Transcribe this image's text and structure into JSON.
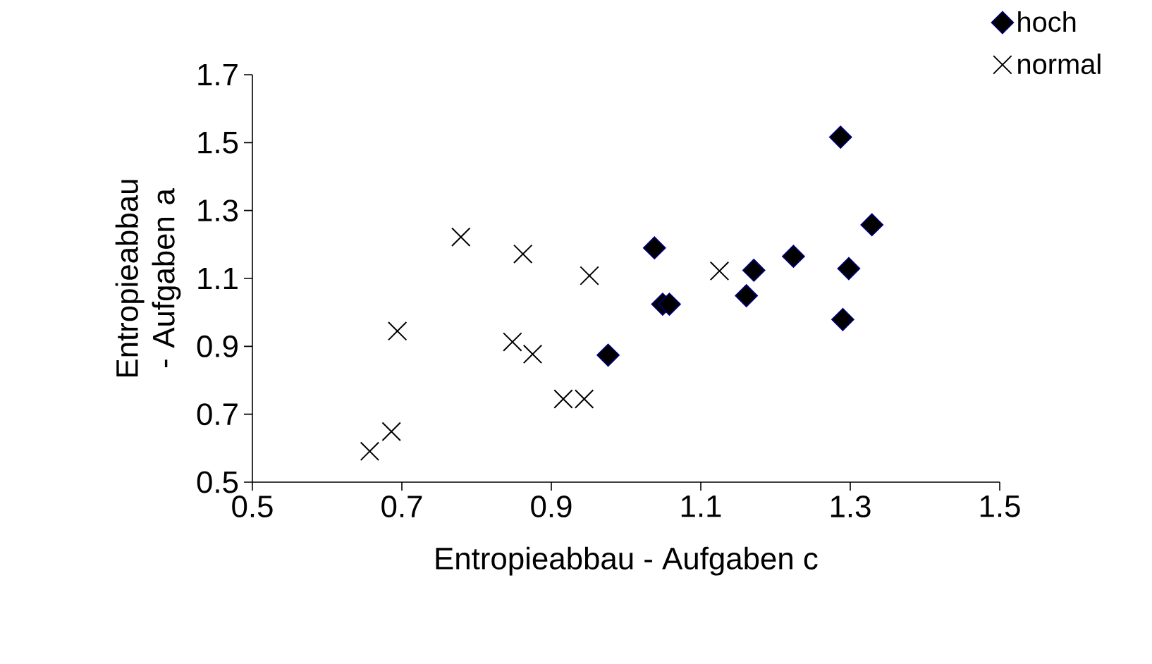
{
  "chart_data": {
    "type": "scatter",
    "xlabel": "Entropieabbau - Aufgaben c",
    "ylabel": "Entropieabbau - Aufgaben a",
    "xlim": [
      0.5,
      1.5
    ],
    "ylim": [
      0.5,
      1.7
    ],
    "xticks": [
      0.5,
      0.7,
      0.9,
      1.1,
      1.3,
      1.5
    ],
    "yticks": [
      0.5,
      0.7,
      0.9,
      1.1,
      1.3,
      1.5,
      1.7
    ],
    "grid": false,
    "legend": "top right",
    "series": [
      {
        "name": "hoch",
        "color": "#000000",
        "marker": "diamond",
        "x": [
          0.976,
          1.038,
          1.049,
          1.058,
          1.171,
          1.161,
          1.224,
          1.287,
          1.329,
          1.298,
          1.29
        ],
        "values": [
          0.874,
          1.19,
          1.024,
          1.024,
          1.124,
          1.049,
          1.165,
          1.516,
          1.258,
          1.129,
          0.979
        ]
      },
      {
        "name": "normal",
        "color": "#000000",
        "marker": "cross",
        "x": [
          0.657,
          0.686,
          0.694,
          0.779,
          0.862,
          0.951,
          0.848,
          0.875,
          0.944,
          0.916,
          1.125
        ],
        "values": [
          0.591,
          0.649,
          0.945,
          1.222,
          1.172,
          1.108,
          0.913,
          0.877,
          0.745,
          0.745,
          1.122
        ]
      }
    ]
  }
}
